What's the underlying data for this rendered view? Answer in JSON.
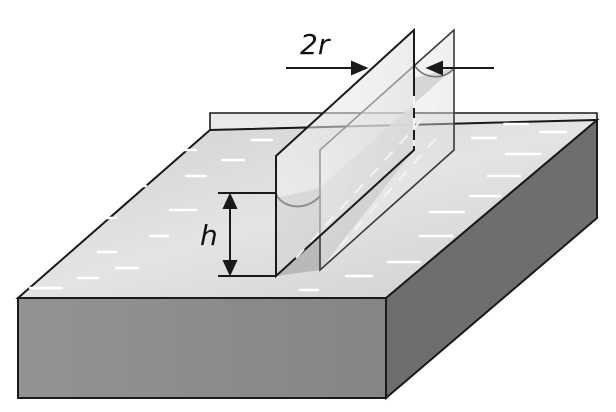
{
  "diagram": {
    "labels": {
      "gap_width": "2r",
      "rise_height": "h"
    },
    "colors": {
      "ink": "#1a1a1a",
      "liquid_top": "#d9d9d9",
      "liquid_shadow": "#b8b8b8",
      "block_front": "#8c8c8c",
      "block_side": "#6d6d6d",
      "plate": "#ececec",
      "streak": "#ffffff"
    }
  }
}
